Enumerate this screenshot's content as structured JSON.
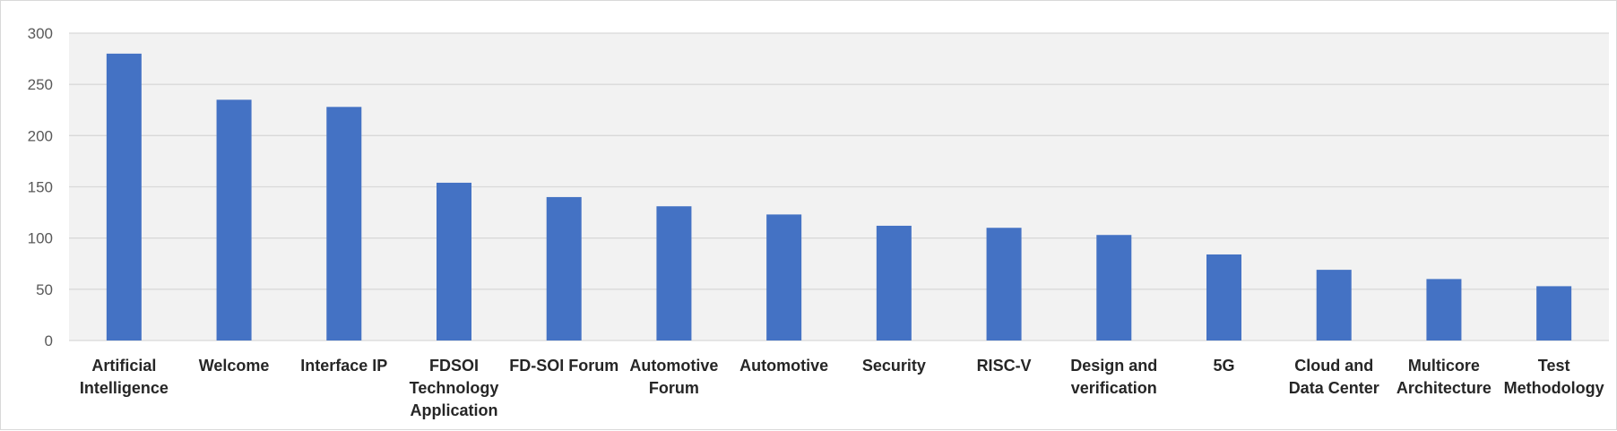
{
  "chart_data": {
    "type": "bar",
    "title": "",
    "xlabel": "",
    "ylabel": "",
    "categories": [
      [
        "Artificial",
        "Intelligence"
      ],
      [
        "Welcome"
      ],
      [
        "Interface IP"
      ],
      [
        "FDSOI",
        "Technology",
        "Application"
      ],
      [
        "FD-SOI Forum"
      ],
      [
        "Automotive",
        "Forum"
      ],
      [
        "Automotive"
      ],
      [
        "Security"
      ],
      [
        "RISC-V"
      ],
      [
        "Design and",
        "verification"
      ],
      [
        "5G"
      ],
      [
        "Cloud and",
        "Data Center"
      ],
      [
        "Multicore",
        "Architecture"
      ],
      [
        "Test",
        "Methodology"
      ]
    ],
    "values": [
      280,
      235,
      228,
      154,
      140,
      131,
      123,
      112,
      110,
      103,
      84,
      69,
      60,
      53
    ],
    "ylim": [
      0,
      300
    ],
    "yticks": [
      "0",
      "50",
      "100",
      "150",
      "200",
      "250",
      "300"
    ],
    "grid": true,
    "legend": "none",
    "colors": {
      "bar": "#4472c4",
      "plot_bg": "#f2f2f2",
      "grid": "#d9d9d9"
    }
  }
}
